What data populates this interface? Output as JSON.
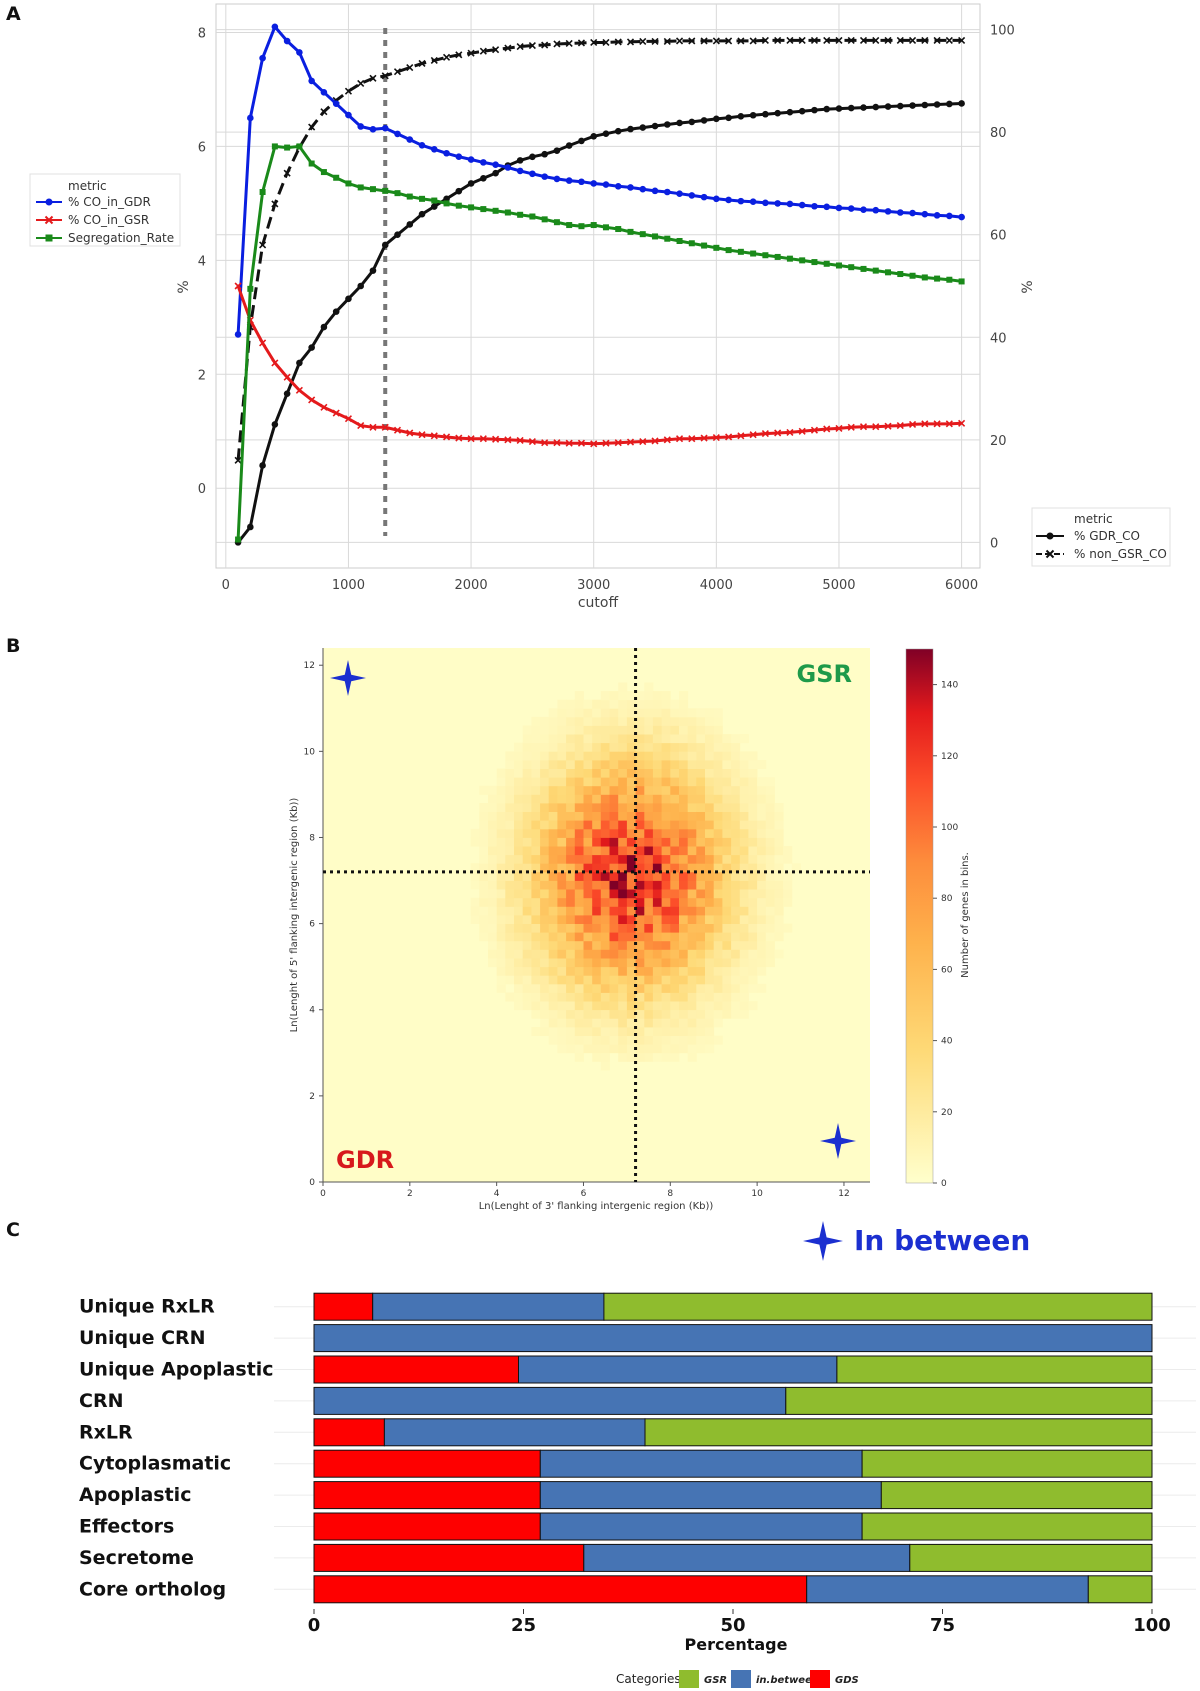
{
  "panels": {
    "a": "A",
    "b": "B",
    "c": "C"
  },
  "chart_data": [
    {
      "type": "line",
      "title": "",
      "xlabel": "cutoff",
      "ylabel_left": "%",
      "ylabel_right": "%",
      "xlim": [
        -80,
        6150
      ],
      "ylim_left": [
        -1.4,
        8.5
      ],
      "ylim_right": [
        -5,
        105
      ],
      "xticks": [
        0,
        1000,
        2000,
        3000,
        4000,
        5000,
        6000
      ],
      "xtick_labels": [
        "0",
        "1000",
        "2000",
        "3000",
        "4000",
        "5000",
        "6000"
      ],
      "yticks_left": [
        0,
        2,
        4,
        6,
        8
      ],
      "ytick_labels_left": [
        "0",
        "2",
        "4",
        "6",
        "8"
      ],
      "yticks_right": [
        0,
        20,
        40,
        60,
        80,
        100
      ],
      "ytick_labels_right": [
        "0",
        "20",
        "40",
        "60",
        "80",
        "100"
      ],
      "vline_x": 1300,
      "grid": true,
      "x": [
        100,
        200,
        300,
        400,
        500,
        600,
        700,
        800,
        900,
        1000,
        1100,
        1200,
        1300,
        1400,
        1500,
        1600,
        1700,
        1800,
        1900,
        2000,
        2100,
        2200,
        2300,
        2400,
        2500,
        2600,
        2700,
        2800,
        2900,
        3000,
        3100,
        3200,
        3300,
        3400,
        3500,
        3600,
        3700,
        3800,
        3900,
        4000,
        4100,
        4200,
        4300,
        4400,
        4500,
        4600,
        4700,
        4800,
        4900,
        5000,
        5100,
        5200,
        5300,
        5400,
        5500,
        5600,
        5700,
        5800,
        5900,
        6000
      ],
      "legend_left": {
        "title": "metric",
        "entries": [
          "% CO_in_GDR",
          "% CO_in_GSR",
          "Segregation_Rate"
        ]
      },
      "legend_right": {
        "title": "metric",
        "entries": [
          "% GDR_CO",
          "% non_GSR_CO"
        ]
      },
      "series_left": [
        {
          "name": "% CO_in_GDR",
          "color": "#0a1fe0",
          "marker": "circle",
          "values": [
            2.7,
            6.5,
            7.55,
            8.1,
            7.85,
            7.65,
            7.15,
            6.95,
            6.75,
            6.55,
            6.35,
            6.3,
            6.32,
            6.22,
            6.12,
            6.02,
            5.95,
            5.88,
            5.82,
            5.77,
            5.72,
            5.68,
            5.63,
            5.57,
            5.52,
            5.47,
            5.43,
            5.4,
            5.38,
            5.35,
            5.33,
            5.3,
            5.28,
            5.25,
            5.22,
            5.2,
            5.17,
            5.14,
            5.11,
            5.08,
            5.06,
            5.04,
            5.03,
            5.01,
            5.0,
            4.99,
            4.97,
            4.95,
            4.94,
            4.92,
            4.91,
            4.89,
            4.88,
            4.86,
            4.84,
            4.83,
            4.81,
            4.79,
            4.78,
            4.76
          ]
        },
        {
          "name": "% CO_in_GSR",
          "color": "#e41a1c",
          "marker": "x",
          "values": [
            3.55,
            2.95,
            2.55,
            2.2,
            1.95,
            1.72,
            1.55,
            1.42,
            1.32,
            1.22,
            1.1,
            1.07,
            1.07,
            1.02,
            0.97,
            0.94,
            0.92,
            0.9,
            0.88,
            0.87,
            0.87,
            0.86,
            0.85,
            0.84,
            0.82,
            0.8,
            0.8,
            0.79,
            0.79,
            0.78,
            0.79,
            0.8,
            0.81,
            0.82,
            0.83,
            0.85,
            0.87,
            0.87,
            0.88,
            0.89,
            0.9,
            0.92,
            0.94,
            0.96,
            0.97,
            0.98,
            1.0,
            1.02,
            1.04,
            1.05,
            1.07,
            1.08,
            1.08,
            1.09,
            1.1,
            1.12,
            1.13,
            1.13,
            1.13,
            1.14
          ]
        },
        {
          "name": "Segregation_Rate",
          "color": "#1a8a1a",
          "marker": "square",
          "values": [
            -0.9,
            3.5,
            5.2,
            6.0,
            5.98,
            6.0,
            5.7,
            5.55,
            5.45,
            5.35,
            5.28,
            5.25,
            5.22,
            5.18,
            5.12,
            5.08,
            5.05,
            5.0,
            4.96,
            4.93,
            4.9,
            4.87,
            4.84,
            4.8,
            4.77,
            4.72,
            4.67,
            4.62,
            4.6,
            4.62,
            4.58,
            4.55,
            4.5,
            4.46,
            4.42,
            4.38,
            4.34,
            4.3,
            4.26,
            4.22,
            4.18,
            4.15,
            4.12,
            4.09,
            4.06,
            4.03,
            4.0,
            3.97,
            3.94,
            3.91,
            3.88,
            3.85,
            3.82,
            3.79,
            3.76,
            3.73,
            3.7,
            3.68,
            3.66,
            3.63
          ]
        }
      ],
      "series_right": [
        {
          "name": "% GDR_CO",
          "color": "#111111",
          "marker": "circle",
          "dash": "solid",
          "values": [
            0,
            3,
            15,
            23,
            29,
            35,
            38,
            42,
            45,
            47.5,
            50,
            53,
            58,
            60,
            62,
            64,
            65.5,
            67,
            68.5,
            70,
            71,
            72,
            73.5,
            74.5,
            75.2,
            75.7,
            76.4,
            77.4,
            78.3,
            79.2,
            79.7,
            80.2,
            80.6,
            80.9,
            81.2,
            81.5,
            81.8,
            82,
            82.3,
            82.6,
            82.8,
            83.1,
            83.3,
            83.5,
            83.7,
            83.9,
            84.1,
            84.3,
            84.5,
            84.6,
            84.7,
            84.8,
            84.9,
            85,
            85.1,
            85.2,
            85.3,
            85.4,
            85.5,
            85.6
          ]
        },
        {
          "name": "% non_GSR_CO",
          "color": "#111111",
          "marker": "x",
          "dash": "dashed",
          "values": [
            16,
            42,
            58,
            66,
            72,
            77,
            81,
            84,
            86.2,
            88,
            89.5,
            90.5,
            91,
            91.8,
            92.6,
            93.4,
            94,
            94.6,
            95.1,
            95.4,
            95.8,
            96.1,
            96.4,
            96.7,
            96.9,
            97.0,
            97.2,
            97.3,
            97.4,
            97.5,
            97.5,
            97.6,
            97.6,
            97.7,
            97.7,
            97.7,
            97.8,
            97.8,
            97.8,
            97.8,
            97.8,
            97.8,
            97.8,
            97.9,
            97.9,
            97.9,
            97.9,
            97.9,
            97.9,
            97.9,
            97.9,
            97.9,
            97.9,
            97.9,
            97.9,
            97.9,
            97.9,
            97.9,
            97.9,
            97.9
          ]
        }
      ]
    },
    {
      "type": "heatmap",
      "xlabel": "Ln(Lenght of 3' flanking intergenic region (Kb))",
      "ylabel": "Ln(Lenght of 5' flanking intergenic region (Kb))",
      "xlim": [
        0,
        12.6
      ],
      "ylim": [
        0,
        12.4
      ],
      "xticks": [
        0,
        2,
        4,
        6,
        8,
        10,
        12
      ],
      "yticks": [
        0,
        2,
        4,
        6,
        8,
        10,
        12
      ],
      "tick_labels": [
        "0",
        "2",
        "4",
        "6",
        "8",
        "10",
        "12"
      ],
      "center": [
        7.0,
        7.0
      ],
      "peak_value": 150,
      "threshold_x": 7.2,
      "threshold_y": 7.2,
      "colorbar": {
        "label": "Number of genes in bins.",
        "min": 0,
        "max": 150,
        "ticks": [
          0,
          20,
          40,
          60,
          80,
          100,
          120,
          140
        ],
        "tick_labels": [
          "0",
          "20",
          "40",
          "60",
          "80",
          "100",
          "120",
          "140"
        ]
      },
      "annotations": {
        "top_right": "GSR",
        "bottom_left": "GDR"
      },
      "annotation_colors": {
        "GSR": "#1e9a4a",
        "GDR": "#d7191c"
      }
    },
    {
      "type": "bar",
      "orientation": "horizontal",
      "stacked": true,
      "xlabel": "Percentage",
      "xlim": [
        0,
        100
      ],
      "xticks": [
        0,
        25,
        50,
        75,
        100
      ],
      "xtick_labels": [
        "0",
        "25",
        "50",
        "75",
        "100"
      ],
      "categories": [
        "Unique RxLR",
        "Unique CRN",
        "Unique Apoplastic",
        "CRN",
        "RxLR",
        "Cytoplasmatic",
        "Apoplastic",
        "Effectors",
        "Secretome",
        "Core ortholog"
      ],
      "series": [
        {
          "name": "GDS",
          "color": "#fe0000",
          "values": [
            7,
            0,
            24.4,
            0,
            8.4,
            27,
            27,
            27,
            32.2,
            58.8
          ]
        },
        {
          "name": "in.between",
          "color": "#4674b4",
          "values": [
            27.6,
            100,
            38,
            56.3,
            31.1,
            38.4,
            40.7,
            38.4,
            38.9,
            33.6
          ]
        },
        {
          "name": "GSR",
          "color": "#8fbc2e",
          "values": [
            65.4,
            0,
            37.6,
            43.7,
            60.5,
            34.6,
            32.3,
            34.6,
            28.9,
            7.6
          ]
        }
      ],
      "legend": {
        "title": "Categories",
        "entries": [
          "GSR",
          "in.between",
          "GDS"
        ]
      }
    }
  ],
  "between_legend": {
    "label": "In between",
    "color": "#1b2fd0"
  }
}
